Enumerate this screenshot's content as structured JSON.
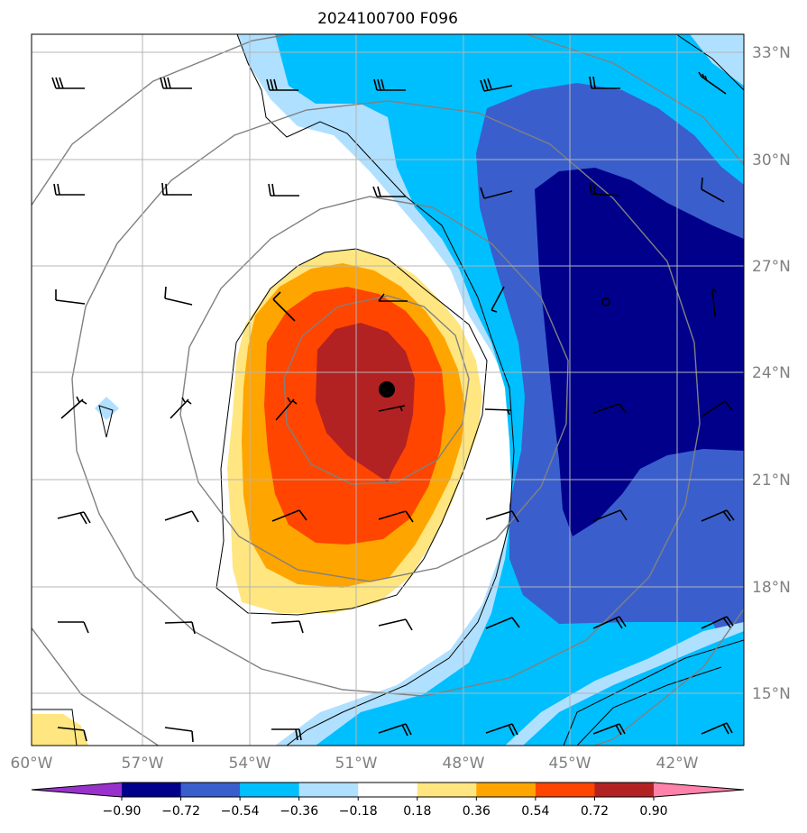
{
  "title": "2024100700 F096",
  "map": {
    "lon_labels": [
      "60°W",
      "57°W",
      "54°W",
      "51°W",
      "48°W",
      "45°W",
      "42°W"
    ],
    "lat_labels": [
      "33°N",
      "30°N",
      "27°N",
      "24°N",
      "21°N",
      "18°N",
      "15°N"
    ],
    "extent": {
      "lon": [
        -60,
        -40
      ],
      "lat": [
        13.5,
        33.5
      ]
    },
    "storm_center": {
      "lon": -50.1,
      "lat": 23.5
    },
    "grid": true
  },
  "colorbar": {
    "ticks": [
      "−0.90",
      "−0.72",
      "−0.54",
      "−0.36",
      "−0.18",
      "0.18",
      "0.36",
      "0.54",
      "0.72",
      "0.90"
    ],
    "colors": [
      "#9932cc",
      "#00008b",
      "#3a5fcd",
      "#00bfff",
      "#b0e0ff",
      "#ffffff",
      "#ffe680",
      "#ffa500",
      "#ff4500",
      "#b22222",
      "#ff82ab"
    ],
    "extend": "both"
  },
  "fill_colors": {
    "lightblue": "#b0e0ff",
    "deepsky": "#00bfff",
    "royal": "#3a5fcd",
    "navy": "#00008b",
    "yellow": "#ffe680",
    "orange": "#ffa500",
    "orangered": "#ff4500",
    "firebrick": "#b22222"
  }
}
